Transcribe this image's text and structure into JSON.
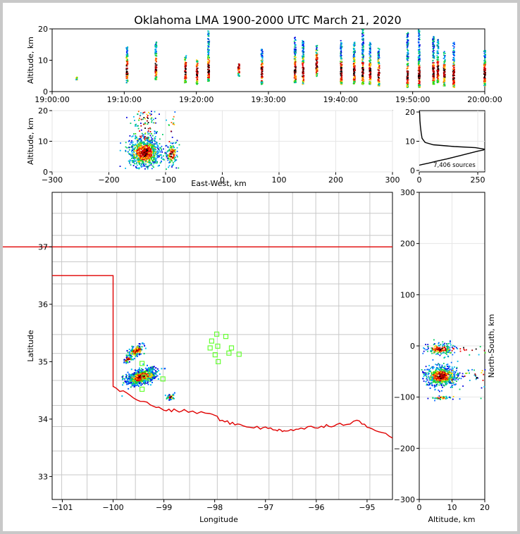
{
  "title": "Oklahoma LMA 1900-2000 UTC March 21, 2020",
  "colors": {
    "border_state": "#e00000",
    "county_line": "#c8c8c8",
    "station": "#66ff33",
    "frame": "#000000",
    "grid": "#e6e6e6"
  },
  "chart_data": [
    {
      "id": "time-altitude",
      "type": "scatter",
      "ylabel": "Altitude, km",
      "ylim": [
        0,
        20
      ],
      "yticks": [
        "0",
        "10",
        "20"
      ],
      "xticks": [
        "19:00:00",
        "19:10:00",
        "19:20:00",
        "19:30:00",
        "19:40:00",
        "19:50:00",
        "20:00:00"
      ],
      "cells": [
        {
          "t": 3.3,
          "lo": 3.8,
          "hi": 4.8
        },
        {
          "t": 10.3,
          "lo": 3.0,
          "hi": 14.5
        },
        {
          "t": 14.3,
          "lo": 4.0,
          "hi": 16.0
        },
        {
          "t": 18.4,
          "lo": 3.0,
          "hi": 12.0
        },
        {
          "t": 20.0,
          "lo": 2.5,
          "hi": 10.5
        },
        {
          "t": 21.6,
          "lo": 3.5,
          "hi": 19.5
        },
        {
          "t": 25.8,
          "lo": 5.0,
          "hi": 9.0
        },
        {
          "t": 29.0,
          "lo": 2.5,
          "hi": 14.0
        },
        {
          "t": 33.6,
          "lo": 3.0,
          "hi": 17.5
        },
        {
          "t": 34.7,
          "lo": 2.5,
          "hi": 16.5
        },
        {
          "t": 36.6,
          "lo": 5.0,
          "hi": 15.0
        },
        {
          "t": 40.0,
          "lo": 2.5,
          "hi": 16.5
        },
        {
          "t": 41.8,
          "lo": 2.5,
          "hi": 16.0
        },
        {
          "t": 43.0,
          "lo": 2.5,
          "hi": 20.0
        },
        {
          "t": 44.0,
          "lo": 2.5,
          "hi": 16.0
        },
        {
          "t": 45.2,
          "lo": 2.0,
          "hi": 14.0
        },
        {
          "t": 49.2,
          "lo": 1.5,
          "hi": 19.0
        },
        {
          "t": 50.8,
          "lo": 1.5,
          "hi": 20.0
        },
        {
          "t": 52.8,
          "lo": 2.5,
          "hi": 18.0
        },
        {
          "t": 53.4,
          "lo": 3.0,
          "hi": 17.0
        },
        {
          "t": 54.3,
          "lo": 2.0,
          "hi": 13.0
        },
        {
          "t": 55.6,
          "lo": 1.5,
          "hi": 16.0
        },
        {
          "t": 59.9,
          "lo": 2.0,
          "hi": 13.5
        }
      ]
    },
    {
      "id": "east-west-altitude",
      "type": "scatter",
      "xlabel": "East-West, km",
      "ylabel": "Altitude, km",
      "xlim": [
        -300,
        300
      ],
      "ylim": [
        0,
        20
      ],
      "xticks": [
        "−300",
        "−200",
        "−100",
        "0",
        "100",
        "200",
        "300"
      ],
      "yticks": [
        "0",
        "10",
        "20"
      ],
      "clusters": [
        {
          "cx": -138,
          "cz": 6.5,
          "sx": 14,
          "sz": 2.6,
          "n": 900
        },
        {
          "cx": -90,
          "cz": 6.0,
          "sx": 5,
          "sz": 2.0,
          "n": 140
        }
      ]
    },
    {
      "id": "altitude-histogram",
      "type": "line",
      "xticks": [
        "0",
        "250"
      ],
      "yticks": [
        "0",
        "10",
        "20"
      ],
      "xlim": [
        0,
        280
      ],
      "ylim": [
        0,
        20
      ],
      "annotation": "7,406 sources",
      "profile": [
        [
          0,
          1.8
        ],
        [
          10,
          2.0
        ],
        [
          40,
          2.5
        ],
        [
          80,
          3.3
        ],
        [
          120,
          4.0
        ],
        [
          150,
          4.6
        ],
        [
          180,
          5.2
        ],
        [
          220,
          6.0
        ],
        [
          250,
          6.6
        ],
        [
          275,
          7.0
        ],
        [
          278,
          7.3
        ],
        [
          240,
          7.8
        ],
        [
          150,
          8.2
        ],
        [
          60,
          8.8
        ],
        [
          25,
          9.6
        ],
        [
          12,
          11.0
        ],
        [
          8,
          13.0
        ],
        [
          5,
          15.0
        ],
        [
          3,
          17.0
        ],
        [
          2,
          19.0
        ],
        [
          1,
          20.5
        ]
      ]
    },
    {
      "id": "plan-view-map",
      "type": "scatter",
      "xlabel": "Longitude",
      "ylabel": "Latitude",
      "xlim": [
        -101.2,
        -94.5
      ],
      "ylim": [
        32.6,
        37.95
      ],
      "xticks": [
        "−101",
        "−100",
        "−99",
        "−98",
        "−97",
        "−96",
        "−95"
      ],
      "yticks": [
        "33",
        "34",
        "35",
        "36",
        "37"
      ],
      "clusters": [
        {
          "lon": -99.45,
          "lat": 34.75,
          "slon": 0.13,
          "slat": 0.07,
          "n": 650
        },
        {
          "lon": -99.55,
          "lat": 35.2,
          "slon": 0.07,
          "slat": 0.05,
          "n": 150
        },
        {
          "lon": -99.72,
          "lat": 35.05,
          "slon": 0.04,
          "slat": 0.03,
          "n": 40
        },
        {
          "lon": -98.88,
          "lat": 34.4,
          "slon": 0.04,
          "slat": 0.03,
          "n": 35
        }
      ],
      "stations": [
        [
          -97.96,
          35.48
        ],
        [
          -97.78,
          35.44
        ],
        [
          -98.06,
          35.36
        ],
        [
          -98.09,
          35.24
        ],
        [
          -97.94,
          35.27
        ],
        [
          -97.67,
          35.24
        ],
        [
          -97.99,
          35.12
        ],
        [
          -97.72,
          35.15
        ],
        [
          -97.52,
          35.13
        ],
        [
          -97.93,
          35.0
        ],
        [
          -99.43,
          34.97
        ],
        [
          -99.39,
          34.73
        ],
        [
          -99.02,
          34.7
        ],
        [
          -99.43,
          34.52
        ]
      ]
    },
    {
      "id": "altitude-north-south",
      "type": "scatter",
      "xlabel": "Altitude, km",
      "ylabel": "North-South, km",
      "xlim": [
        0,
        20
      ],
      "ylim": [
        -300,
        300
      ],
      "xticks": [
        "0",
        "10",
        "20"
      ],
      "yticks": [
        "−300",
        "−200",
        "−100",
        "0",
        "100",
        "200",
        "300"
      ],
      "clusters": [
        {
          "z": 6.5,
          "y": -58,
          "sz": 2.5,
          "sy": 10,
          "n": 650
        },
        {
          "z": 6.0,
          "y": -5,
          "sz": 2.2,
          "sy": 6,
          "n": 200
        },
        {
          "z": 6.5,
          "y": -100,
          "sz": 1.5,
          "sy": 2,
          "n": 40
        }
      ]
    }
  ]
}
